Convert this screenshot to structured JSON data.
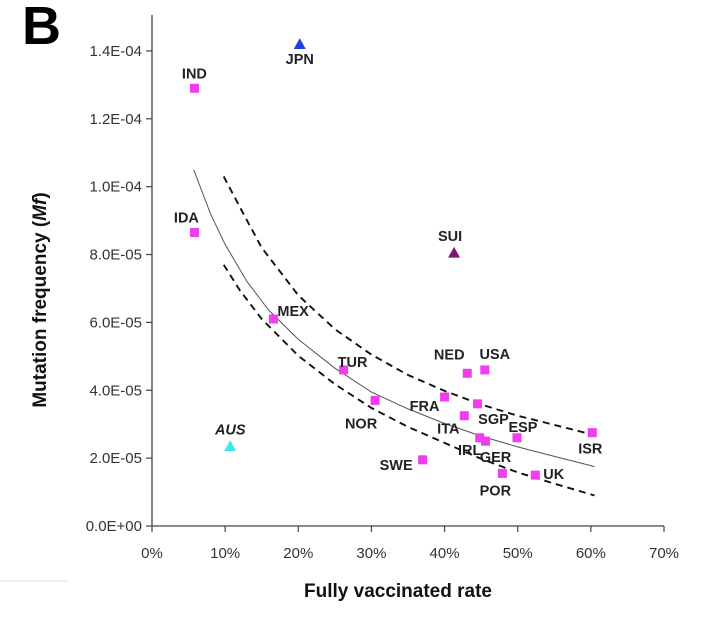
{
  "chart_data": {
    "type": "scatter",
    "panel_label": "B",
    "xlabel": "Fully vaccinated rate",
    "ylabel_main": "Mutation frequency (",
    "ylabel_italic": "Mf",
    "ylabel_end": ")",
    "xlim": [
      0,
      0.7
    ],
    "ylim": [
      0,
      0.00015
    ],
    "x_ticks": [
      0,
      0.1,
      0.2,
      0.3,
      0.4,
      0.5,
      0.6,
      0.7
    ],
    "x_tick_labels": [
      "0%",
      "10%",
      "20%",
      "30%",
      "40%",
      "50%",
      "60%",
      "70%"
    ],
    "y_ticks": [
      0,
      2e-05,
      4e-05,
      6e-05,
      8e-05,
      0.0001,
      0.00012,
      0.00014
    ],
    "y_tick_labels": [
      "0.0E+00",
      "2.0E-05",
      "4.0E-05",
      "6.0E-05",
      "8.0E-05",
      "1.0E-04",
      "1.2E-04",
      "1.4E-04"
    ],
    "grid": false,
    "colors": {
      "square": "#f23cf2",
      "jpn": "#1f3fe0",
      "sui": "#7a1a6e",
      "aus": "#3fe6ee",
      "fit": "#555555",
      "ci": "#111111"
    },
    "points": [
      {
        "label": "IND",
        "x": 0.058,
        "y": 0.000129,
        "marker": "square",
        "color": "#f23cf2",
        "dx": 0,
        "dy": -10,
        "anchor": "middle",
        "italic": false
      },
      {
        "label": "IDA",
        "x": 0.058,
        "y": 8.65e-05,
        "marker": "square",
        "color": "#f23cf2",
        "dx": -8,
        "dy": -10,
        "anchor": "middle",
        "italic": false
      },
      {
        "label": "MEX",
        "x": 0.166,
        "y": 6.1e-05,
        "marker": "square",
        "color": "#f23cf2",
        "dx": 4,
        "dy": -3,
        "anchor": "start",
        "italic": false
      },
      {
        "label": "TUR",
        "x": 0.262,
        "y": 4.6e-05,
        "marker": "square",
        "color": "#f23cf2",
        "dx": -6,
        "dy": -3,
        "anchor": "start",
        "italic": false
      },
      {
        "label": "NOR",
        "x": 0.305,
        "y": 3.7e-05,
        "marker": "square",
        "color": "#f23cf2",
        "dx": -14,
        "dy": 28,
        "anchor": "middle",
        "italic": false
      },
      {
        "label": "SWE",
        "x": 0.37,
        "y": 1.95e-05,
        "marker": "square",
        "color": "#f23cf2",
        "dx": -10,
        "dy": 10,
        "anchor": "end",
        "italic": false
      },
      {
        "label": "FRA",
        "x": 0.4,
        "y": 3.8e-05,
        "marker": "square",
        "color": "#f23cf2",
        "dx": -20,
        "dy": 14,
        "anchor": "middle",
        "italic": false
      },
      {
        "label": "ITA",
        "x": 0.427,
        "y": 3.25e-05,
        "marker": "square",
        "color": "#f23cf2",
        "dx": -16,
        "dy": 18,
        "anchor": "middle",
        "italic": false
      },
      {
        "label": "NED",
        "x": 0.431,
        "y": 4.5e-05,
        "marker": "square",
        "color": "#f23cf2",
        "dx": -18,
        "dy": -14,
        "anchor": "middle",
        "italic": false
      },
      {
        "label": "SGP",
        "x": 0.445,
        "y": 3.6e-05,
        "marker": "square",
        "color": "#f23cf2",
        "dx": 16,
        "dy": 20,
        "anchor": "middle",
        "italic": false
      },
      {
        "label": "IRL",
        "x": 0.448,
        "y": 2.6e-05,
        "marker": "square",
        "color": "#f23cf2",
        "dx": -10,
        "dy": 17,
        "anchor": "middle",
        "italic": false
      },
      {
        "label": "GER",
        "x": 0.456,
        "y": 2.5e-05,
        "marker": "square",
        "color": "#f23cf2",
        "dx": 10,
        "dy": 21,
        "anchor": "middle",
        "italic": false
      },
      {
        "label": "USA",
        "x": 0.455,
        "y": 4.6e-05,
        "marker": "square",
        "color": "#f23cf2",
        "dx": 10,
        "dy": -11,
        "anchor": "middle",
        "italic": false
      },
      {
        "label": "POR",
        "x": 0.479,
        "y": 1.55e-05,
        "marker": "square",
        "color": "#f23cf2",
        "dx": -7,
        "dy": 22,
        "anchor": "middle",
        "italic": false
      },
      {
        "label": "ESP",
        "x": 0.499,
        "y": 2.6e-05,
        "marker": "square",
        "color": "#f23cf2",
        "dx": 6,
        "dy": -6,
        "anchor": "middle",
        "italic": false
      },
      {
        "label": "UK",
        "x": 0.524,
        "y": 1.5e-05,
        "marker": "square",
        "color": "#f23cf2",
        "dx": 8,
        "dy": 4,
        "anchor": "start",
        "italic": false
      },
      {
        "label": "ISR",
        "x": 0.602,
        "y": 2.75e-05,
        "marker": "square",
        "color": "#f23cf2",
        "dx": -2,
        "dy": 21,
        "anchor": "middle",
        "italic": false
      },
      {
        "label": "JPN",
        "x": 0.202,
        "y": 0.000142,
        "marker": "triangle",
        "color": "#1f3fe0",
        "dx": 0,
        "dy": 20,
        "anchor": "middle",
        "italic": false
      },
      {
        "label": "SUI",
        "x": 0.413,
        "y": 8.05e-05,
        "marker": "triangle",
        "color": "#7a1a6e",
        "dx": -4,
        "dy": -12,
        "anchor": "middle",
        "italic": false
      },
      {
        "label": "AUS",
        "x": 0.107,
        "y": 2.35e-05,
        "marker": "triangle",
        "color": "#3fe6ee",
        "dx": 0,
        "dy": -12,
        "anchor": "middle",
        "italic": true
      }
    ],
    "fit_curve": {
      "x": [
        0.057,
        0.08,
        0.1,
        0.13,
        0.16,
        0.2,
        0.25,
        0.3,
        0.35,
        0.4,
        0.45,
        0.5,
        0.55,
        0.6,
        0.605
      ],
      "y": [
        0.000105,
        9.2e-05,
        8.3e-05,
        7.2e-05,
        6.35e-05,
        5.5e-05,
        4.65e-05,
        3.95e-05,
        3.45e-05,
        3.02e-05,
        2.65e-05,
        2.33e-05,
        2.05e-05,
        1.78e-05,
        1.75e-05
      ]
    },
    "upper_ci": {
      "x": [
        0.098,
        0.12,
        0.15,
        0.2,
        0.25,
        0.3,
        0.35,
        0.4,
        0.45,
        0.5,
        0.55,
        0.605
      ],
      "y": [
        0.000103,
        9.4e-05,
        8.2e-05,
        6.8e-05,
        5.8e-05,
        5.05e-05,
        4.45e-05,
        3.98e-05,
        3.58e-05,
        3.25e-05,
        2.98e-05,
        2.68e-05
      ]
    },
    "lower_ci": {
      "x": [
        0.098,
        0.12,
        0.15,
        0.2,
        0.25,
        0.3,
        0.35,
        0.4,
        0.45,
        0.5,
        0.55,
        0.605
      ],
      "y": [
        7.7e-05,
        6.95e-05,
        6.1e-05,
        5.02e-05,
        4.18e-05,
        3.48e-05,
        2.92e-05,
        2.45e-05,
        1.98e-05,
        1.58e-05,
        1.25e-05,
        9e-06
      ]
    }
  }
}
